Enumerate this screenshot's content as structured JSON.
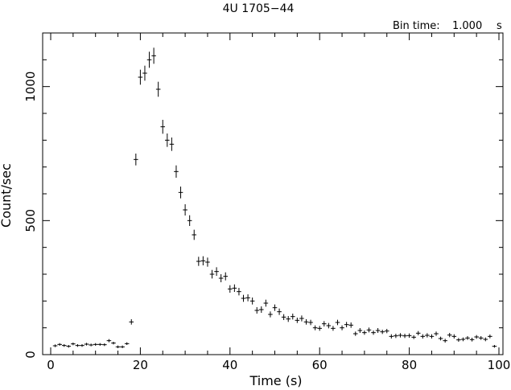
{
  "chart_data": {
    "type": "scatter",
    "title": "4U 1705−44",
    "bin_time_label": "Bin time:",
    "bin_time_value": "1.000",
    "bin_time_unit": "s",
    "xlabel": "Time (s)",
    "ylabel": "Count/sec",
    "xlim": [
      0,
      100
    ],
    "ylim": [
      0,
      1200
    ],
    "xticks": [
      0,
      20,
      40,
      60,
      80,
      100
    ],
    "yticks": [
      0,
      500,
      1000
    ],
    "x_minor_step": 5,
    "y_minor_step": 100,
    "grid": false,
    "x_error": 0.5,
    "points": [
      {
        "x": 1,
        "y": 33,
        "err": 5
      },
      {
        "x": 2,
        "y": 38,
        "err": 5
      },
      {
        "x": 3,
        "y": 34,
        "err": 5
      },
      {
        "x": 4,
        "y": 31,
        "err": 5
      },
      {
        "x": 5,
        "y": 40,
        "err": 5
      },
      {
        "x": 6,
        "y": 34,
        "err": 5
      },
      {
        "x": 7,
        "y": 34,
        "err": 5
      },
      {
        "x": 8,
        "y": 39,
        "err": 5
      },
      {
        "x": 9,
        "y": 36,
        "err": 5
      },
      {
        "x": 10,
        "y": 38,
        "err": 5
      },
      {
        "x": 11,
        "y": 38,
        "err": 5
      },
      {
        "x": 12,
        "y": 37,
        "err": 5
      },
      {
        "x": 13,
        "y": 52,
        "err": 6
      },
      {
        "x": 14,
        "y": 43,
        "err": 5
      },
      {
        "x": 15,
        "y": 29,
        "err": 5
      },
      {
        "x": 16,
        "y": 29,
        "err": 5
      },
      {
        "x": 17,
        "y": 41,
        "err": 5
      },
      {
        "x": 18,
        "y": 122,
        "err": 10
      },
      {
        "x": 19,
        "y": 728,
        "err": 22
      },
      {
        "x": 20,
        "y": 1035,
        "err": 28
      },
      {
        "x": 21,
        "y": 1050,
        "err": 28
      },
      {
        "x": 22,
        "y": 1100,
        "err": 30
      },
      {
        "x": 23,
        "y": 1115,
        "err": 30
      },
      {
        "x": 24,
        "y": 990,
        "err": 28
      },
      {
        "x": 25,
        "y": 850,
        "err": 26
      },
      {
        "x": 26,
        "y": 800,
        "err": 25
      },
      {
        "x": 27,
        "y": 785,
        "err": 25
      },
      {
        "x": 28,
        "y": 683,
        "err": 23
      },
      {
        "x": 29,
        "y": 605,
        "err": 22
      },
      {
        "x": 30,
        "y": 540,
        "err": 21
      },
      {
        "x": 31,
        "y": 500,
        "err": 20
      },
      {
        "x": 32,
        "y": 447,
        "err": 19
      },
      {
        "x": 33,
        "y": 348,
        "err": 17
      },
      {
        "x": 34,
        "y": 350,
        "err": 17
      },
      {
        "x": 35,
        "y": 345,
        "err": 17
      },
      {
        "x": 36,
        "y": 300,
        "err": 16
      },
      {
        "x": 37,
        "y": 310,
        "err": 16
      },
      {
        "x": 38,
        "y": 285,
        "err": 15
      },
      {
        "x": 39,
        "y": 292,
        "err": 15
      },
      {
        "x": 40,
        "y": 245,
        "err": 14
      },
      {
        "x": 41,
        "y": 248,
        "err": 14
      },
      {
        "x": 42,
        "y": 235,
        "err": 14
      },
      {
        "x": 43,
        "y": 210,
        "err": 13
      },
      {
        "x": 44,
        "y": 212,
        "err": 13
      },
      {
        "x": 45,
        "y": 200,
        "err": 13
      },
      {
        "x": 46,
        "y": 165,
        "err": 12
      },
      {
        "x": 47,
        "y": 168,
        "err": 12
      },
      {
        "x": 48,
        "y": 192,
        "err": 13
      },
      {
        "x": 49,
        "y": 150,
        "err": 11
      },
      {
        "x": 50,
        "y": 175,
        "err": 12
      },
      {
        "x": 51,
        "y": 160,
        "err": 12
      },
      {
        "x": 52,
        "y": 140,
        "err": 11
      },
      {
        "x": 53,
        "y": 133,
        "err": 11
      },
      {
        "x": 54,
        "y": 142,
        "err": 11
      },
      {
        "x": 55,
        "y": 128,
        "err": 10
      },
      {
        "x": 56,
        "y": 135,
        "err": 11
      },
      {
        "x": 57,
        "y": 122,
        "err": 10
      },
      {
        "x": 58,
        "y": 120,
        "err": 10
      },
      {
        "x": 59,
        "y": 100,
        "err": 9
      },
      {
        "x": 60,
        "y": 98,
        "err": 9
      },
      {
        "x": 61,
        "y": 115,
        "err": 10
      },
      {
        "x": 62,
        "y": 108,
        "err": 10
      },
      {
        "x": 63,
        "y": 98,
        "err": 9
      },
      {
        "x": 64,
        "y": 120,
        "err": 10
      },
      {
        "x": 65,
        "y": 100,
        "err": 9
      },
      {
        "x": 66,
        "y": 112,
        "err": 10
      },
      {
        "x": 67,
        "y": 110,
        "err": 10
      },
      {
        "x": 68,
        "y": 78,
        "err": 8
      },
      {
        "x": 69,
        "y": 90,
        "err": 9
      },
      {
        "x": 70,
        "y": 82,
        "err": 8
      },
      {
        "x": 71,
        "y": 92,
        "err": 9
      },
      {
        "x": 72,
        "y": 82,
        "err": 8
      },
      {
        "x": 73,
        "y": 90,
        "err": 9
      },
      {
        "x": 74,
        "y": 85,
        "err": 8
      },
      {
        "x": 75,
        "y": 88,
        "err": 8
      },
      {
        "x": 76,
        "y": 68,
        "err": 8
      },
      {
        "x": 77,
        "y": 70,
        "err": 8
      },
      {
        "x": 78,
        "y": 72,
        "err": 8
      },
      {
        "x": 79,
        "y": 70,
        "err": 8
      },
      {
        "x": 80,
        "y": 71,
        "err": 8
      },
      {
        "x": 81,
        "y": 65,
        "err": 7
      },
      {
        "x": 82,
        "y": 80,
        "err": 8
      },
      {
        "x": 83,
        "y": 68,
        "err": 8
      },
      {
        "x": 84,
        "y": 72,
        "err": 8
      },
      {
        "x": 85,
        "y": 68,
        "err": 8
      },
      {
        "x": 86,
        "y": 78,
        "err": 8
      },
      {
        "x": 87,
        "y": 60,
        "err": 7
      },
      {
        "x": 88,
        "y": 52,
        "err": 7
      },
      {
        "x": 89,
        "y": 73,
        "err": 8
      },
      {
        "x": 90,
        "y": 68,
        "err": 8
      },
      {
        "x": 91,
        "y": 55,
        "err": 7
      },
      {
        "x": 92,
        "y": 57,
        "err": 7
      },
      {
        "x": 93,
        "y": 62,
        "err": 7
      },
      {
        "x": 94,
        "y": 56,
        "err": 7
      },
      {
        "x": 95,
        "y": 66,
        "err": 7
      },
      {
        "x": 96,
        "y": 62,
        "err": 7
      },
      {
        "x": 97,
        "y": 57,
        "err": 7
      },
      {
        "x": 98,
        "y": 68,
        "err": 7
      },
      {
        "x": 99,
        "y": 31,
        "err": 5
      }
    ]
  }
}
